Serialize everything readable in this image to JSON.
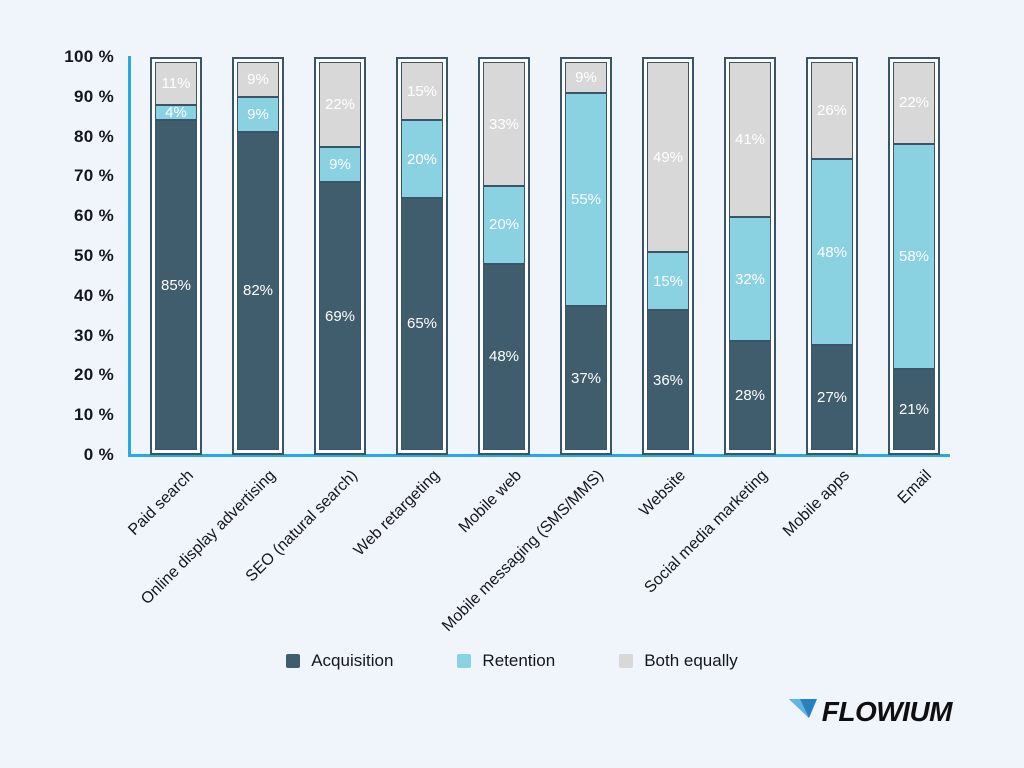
{
  "colors": {
    "background": "#eff5fa",
    "axis": "#29a9e1",
    "bar_outline": "#3a5568",
    "bar_inner_background": "#ffffff",
    "segment_label_text": "#ffffff",
    "tick_text": "#15151e",
    "logo_mark_light": "#5fb5e5",
    "logo_mark_dark": "#2a7fc0"
  },
  "chart_data": {
    "type": "bar",
    "subtype": "stacked-percentage-column",
    "title": "",
    "xlabel": "",
    "ylabel": "",
    "ylim": [
      0,
      100
    ],
    "grid": false,
    "legend_position": "bottom",
    "value_suffix": "%",
    "y_ticks": [
      "100 %",
      "90 %",
      "80 %",
      "70 %",
      "60 %",
      "50 %",
      "40 %",
      "30 %",
      "20 %",
      "10 %",
      "0 %"
    ],
    "categories": [
      "Paid search",
      "Online display advertising",
      "SEO (natural search)",
      "Web retargeting",
      "Mobile web",
      "Mobile messaging (SMS/MMS)",
      "Website",
      "Social media marketing",
      "Mobile apps",
      "Email"
    ],
    "series": [
      {
        "name": "Acquisition",
        "color": "#405d6e",
        "values": [
          85,
          82,
          69,
          65,
          48,
          37,
          36,
          28,
          27,
          21
        ]
      },
      {
        "name": "Retention",
        "color": "#8ad1e2",
        "values": [
          4,
          9,
          9,
          20,
          20,
          55,
          15,
          32,
          48,
          58
        ]
      },
      {
        "name": "Both equally",
        "color": "#d8d8d8",
        "values": [
          11,
          9,
          22,
          15,
          33,
          9,
          49,
          41,
          26,
          22
        ]
      }
    ]
  },
  "legend": {
    "items": [
      {
        "label": "Acquisition",
        "color": "#405d6e"
      },
      {
        "label": "Retention",
        "color": "#8ad1e2"
      },
      {
        "label": "Both equally",
        "color": "#d8d8d8"
      }
    ]
  },
  "logo": {
    "text": "FLOWIUM"
  }
}
